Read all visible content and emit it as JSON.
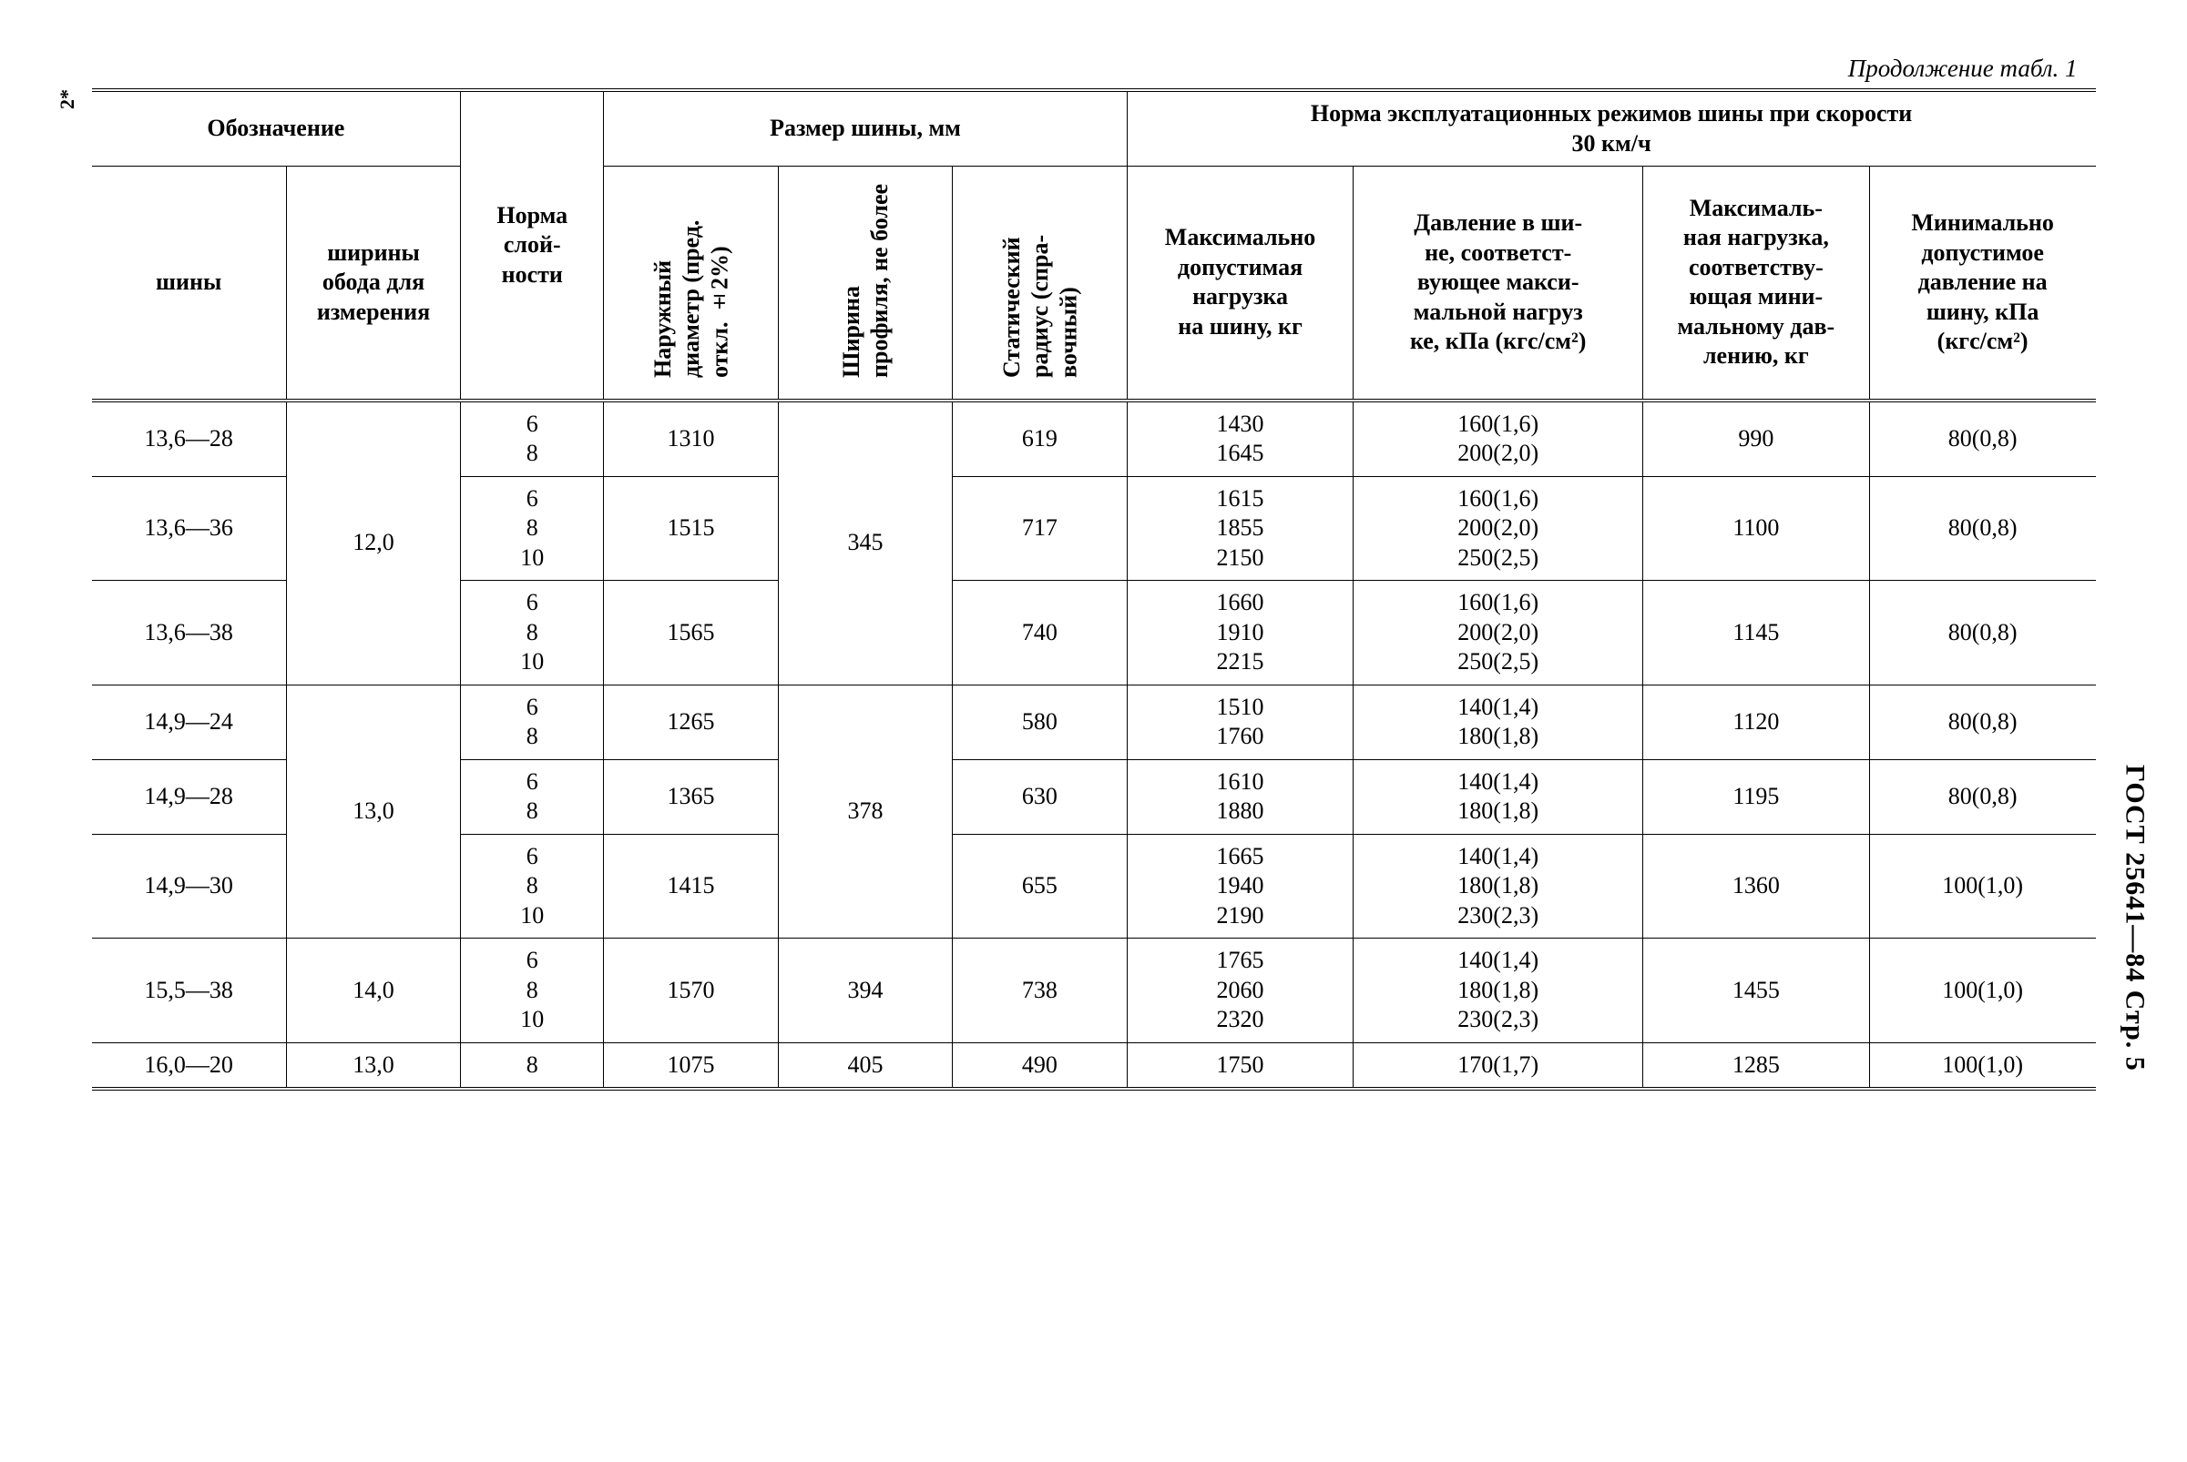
{
  "caption": "Продолжение табл. 1",
  "side_left": "2*",
  "side_right": "ГОСТ 25641—84 Стр. 5",
  "header": {
    "designation": "Обозначение",
    "tire_size": "Размер шины, мм",
    "norms_at_speed": "Норма эксплуатационных режимов шины при скорости\n30 км/ч",
    "tire": "шины",
    "rim_width": "ширины\nобода для\nизмерения",
    "ply": "Норма\nслой-\nности",
    "outer_diam": "Наружный\nдиаметр\n(пред. откл.\n±2%)",
    "profile_width": "Ширина\nпрофиля,\nне более",
    "static_radius": "Статический\nрадиус (спра-\nвочный)",
    "max_load": "Максимально\nдопустимая\nнагрузка\nна шину, кг",
    "pressure_at_max": "Давление в ши-\nне, соответст-\nвующее макси-\nмальной нагруз\nке, кПа (кгс/см²)",
    "load_at_min": "Максималь-\nная нагрузка,\nсоответству-\nющая мини-\nмальному дав-\nлению, кг",
    "min_pressure": "Минимально\nдопустимое\nдавление на\nшину, кПа\n(кгс/см²)"
  },
  "rows": [
    {
      "tire": "13,6—28",
      "rim": "",
      "ply": "6\n8",
      "diam": "1310",
      "width": "",
      "radius": "619",
      "max_load": "1430\n1645",
      "press_max": "160(1,6)\n200(2,0)",
      "load_min": "990",
      "press_min": "80(0,8)",
      "grp_first": true,
      "show_rim": false,
      "show_width": false
    },
    {
      "tire": "13,6—36",
      "rim": "12,0",
      "ply": "6\n8\n10",
      "diam": "1515",
      "width": "345",
      "radius": "717",
      "max_load": "1615\n1855\n2150",
      "press_max": "160(1,6)\n200(2,0)\n250(2,5)",
      "load_min": "1100",
      "press_min": "80(0,8)",
      "grp_first": false,
      "show_rim": true,
      "show_width": true
    },
    {
      "tire": "13,6—38",
      "rim": "",
      "ply": "6\n8\n10",
      "diam": "1565",
      "width": "",
      "radius": "740",
      "max_load": "1660\n1910\n2215",
      "press_max": "160(1,6)\n200(2,0)\n250(2,5)",
      "load_min": "1145",
      "press_min": "80(0,8)",
      "grp_first": false,
      "show_rim": false,
      "show_width": false
    },
    {
      "tire": "14,9—24",
      "rim": "",
      "ply": "6\n8",
      "diam": "1265",
      "width": "",
      "radius": "580",
      "max_load": "1510\n1760",
      "press_max": "140(1,4)\n180(1,8)",
      "load_min": "1120",
      "press_min": "80(0,8)",
      "grp_first": true,
      "show_rim": false,
      "show_width": false
    },
    {
      "tire": "14,9—28",
      "rim": "13,0",
      "ply": "6\n8",
      "diam": "1365",
      "width": "378",
      "radius": "630",
      "max_load": "1610\n1880",
      "press_max": "140(1,4)\n180(1,8)",
      "load_min": "1195",
      "press_min": "80(0,8)",
      "grp_first": false,
      "show_rim": true,
      "show_width": true
    },
    {
      "tire": "14,9—30",
      "rim": "",
      "ply": "6\n8\n10",
      "diam": "1415",
      "width": "",
      "radius": "655",
      "max_load": "1665\n1940\n2190",
      "press_max": "140(1,4)\n180(1,8)\n230(2,3)",
      "load_min": "1360",
      "press_min": "100(1,0)",
      "grp_first": false,
      "show_rim": false,
      "show_width": false
    },
    {
      "tire": "15,5—38",
      "rim": "14,0",
      "ply": "6\n8\n10",
      "diam": "1570",
      "width": "394",
      "radius": "738",
      "max_load": "1765\n2060\n2320",
      "press_max": "140(1,4)\n180(1,8)\n230(2,3)",
      "load_min": "1455",
      "press_min": "100(1,0)",
      "grp_first": true,
      "show_rim": true,
      "show_width": true
    },
    {
      "tire": "16,0—20",
      "rim": "13,0",
      "ply": "8",
      "diam": "1075",
      "width": "405",
      "radius": "490",
      "max_load": "1750",
      "press_max": "170(1,7)",
      "load_min": "1285",
      "press_min": "100(1,0)",
      "grp_first": true,
      "show_rim": true,
      "show_width": true
    }
  ],
  "groups": [
    {
      "size": 3,
      "rim": "12,0",
      "width": "345"
    },
    {
      "size": 3,
      "rim": "13,0",
      "width": "378"
    },
    {
      "size": 1,
      "rim": "14,0",
      "width": "394"
    },
    {
      "size": 1,
      "rim": "13,0",
      "width": "405"
    }
  ]
}
